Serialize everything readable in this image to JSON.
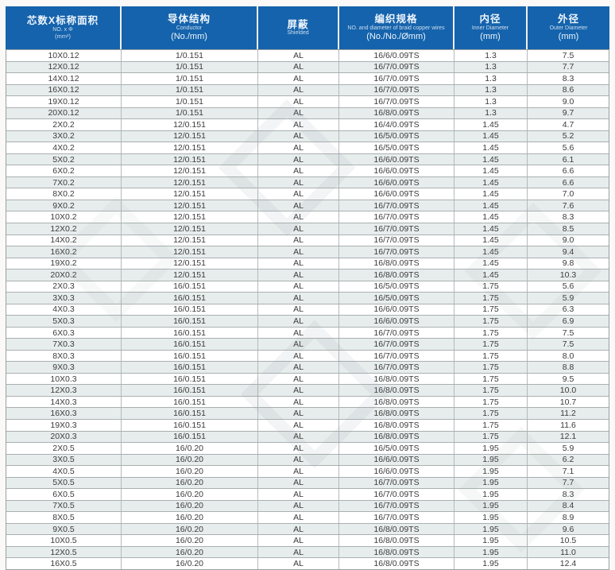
{
  "header": {
    "bg_color": "#1563ac",
    "columns": [
      {
        "zh": "芯数X标称面积",
        "en": "NO. x Φ",
        "unit": "(mm²)"
      },
      {
        "zh": "导体结构",
        "en": "Conductor",
        "unit": "(No./mm)"
      },
      {
        "zh": "屏蔽",
        "en": "Shielded",
        "unit": ""
      },
      {
        "zh": "编织规格",
        "en": "NO. and diameter of braid copper wires",
        "unit": "(No./No./Ømm)"
      },
      {
        "zh": "内径",
        "en": "Inner Diameter",
        "unit": "(mm)"
      },
      {
        "zh": "外径",
        "en": "Outer Diameter",
        "unit": "(mm)"
      }
    ]
  },
  "table": {
    "row_alt_color": "#e7edec",
    "border_color": "#aab0b1",
    "rows": [
      [
        "10X0.12",
        "1/0.151",
        "AL",
        "16/6/0.09TS",
        "1.3",
        "7.5"
      ],
      [
        "12X0.12",
        "1/0.151",
        "AL",
        "16/7/0.09TS",
        "1.3",
        "7.7"
      ],
      [
        "14X0.12",
        "1/0.151",
        "AL",
        "16/7/0.09TS",
        "1.3",
        "8.3"
      ],
      [
        "16X0.12",
        "1/0.151",
        "AL",
        "16/7/0.09TS",
        "1.3",
        "8.6"
      ],
      [
        "19X0.12",
        "1/0.151",
        "AL",
        "16/7/0.09TS",
        "1.3",
        "9.0"
      ],
      [
        "20X0.12",
        "1/0.151",
        "AL",
        "16/8/0.09TS",
        "1.3",
        "9.7"
      ],
      [
        "2X0.2",
        "12/0.151",
        "AL",
        "16/4/0.09TS",
        "1.45",
        "4.7"
      ],
      [
        "3X0.2",
        "12/0.151",
        "AL",
        "16/5/0.09TS",
        "1.45",
        "5.2"
      ],
      [
        "4X0.2",
        "12/0.151",
        "AL",
        "16/5/0.09TS",
        "1.45",
        "5.6"
      ],
      [
        "5X0.2",
        "12/0.151",
        "AL",
        "16/6/0.09TS",
        "1.45",
        "6.1"
      ],
      [
        "6X0.2",
        "12/0.151",
        "AL",
        "16/6/0.09TS",
        "1.45",
        "6.6"
      ],
      [
        "7X0.2",
        "12/0.151",
        "AL",
        "16/6/0.09TS",
        "1.45",
        "6.6"
      ],
      [
        "8X0.2",
        "12/0.151",
        "AL",
        "16/6/0.09TS",
        "1.45",
        "7.0"
      ],
      [
        "9X0.2",
        "12/0.151",
        "AL",
        "16/7/0.09TS",
        "1.45",
        "7.6"
      ],
      [
        "10X0.2",
        "12/0.151",
        "AL",
        "16/7/0.09TS",
        "1.45",
        "8.3"
      ],
      [
        "12X0.2",
        "12/0.151",
        "AL",
        "16/7/0.09TS",
        "1.45",
        "8.5"
      ],
      [
        "14X0.2",
        "12/0.151",
        "AL",
        "16/7/0.09TS",
        "1.45",
        "9.0"
      ],
      [
        "16X0.2",
        "12/0.151",
        "AL",
        "16/7/0.09TS",
        "1.45",
        "9.4"
      ],
      [
        "19X0.2",
        "12/0.151",
        "AL",
        "16/8/0.09TS",
        "1.45",
        "9.8"
      ],
      [
        "20X0.2",
        "12/0.151",
        "AL",
        "16/8/0.09TS",
        "1.45",
        "10.3"
      ],
      [
        "2X0.3",
        "16/0.151",
        "AL",
        "16/5/0.09TS",
        "1.75",
        "5.6"
      ],
      [
        "3X0.3",
        "16/0.151",
        "AL",
        "16/5/0.09TS",
        "1.75",
        "5.9"
      ],
      [
        "4X0.3",
        "16/0.151",
        "AL",
        "16/6/0.09TS",
        "1.75",
        "6.3"
      ],
      [
        "5X0.3",
        "16/0.151",
        "AL",
        "16/6/0.09TS",
        "1.75",
        "6.9"
      ],
      [
        "6X0.3",
        "16/0.151",
        "AL",
        "16/7/0.09TS",
        "1.75",
        "7.5"
      ],
      [
        "7X0.3",
        "16/0.151",
        "AL",
        "16/7/0.09TS",
        "1.75",
        "7.5"
      ],
      [
        "8X0.3",
        "16/0.151",
        "AL",
        "16/7/0.09TS",
        "1.75",
        "8.0"
      ],
      [
        "9X0.3",
        "16/0.151",
        "AL",
        "16/7/0.09TS",
        "1.75",
        "8.8"
      ],
      [
        "10X0.3",
        "16/0.151",
        "AL",
        "16/8/0.09TS",
        "1.75",
        "9.5"
      ],
      [
        "12X0.3",
        "16/0.151",
        "AL",
        "16/8/0.09TS",
        "1.75",
        "10.0"
      ],
      [
        "14X0.3",
        "16/0.151",
        "AL",
        "16/8/0.09TS",
        "1.75",
        "10.7"
      ],
      [
        "16X0.3",
        "16/0.151",
        "AL",
        "16/8/0.09TS",
        "1.75",
        "11.2"
      ],
      [
        "19X0.3",
        "16/0.151",
        "AL",
        "16/8/0.09TS",
        "1.75",
        "11.6"
      ],
      [
        "20X0.3",
        "16/0.151",
        "AL",
        "16/8/0.09TS",
        "1.75",
        "12.1"
      ],
      [
        "2X0.5",
        "16/0.20",
        "AL",
        "16/5/0.09TS",
        "1.95",
        "5.9"
      ],
      [
        "3X0.5",
        "16/0.20",
        "AL",
        "16/6/0.09TS",
        "1.95",
        "6.2"
      ],
      [
        "4X0.5",
        "16/0.20",
        "AL",
        "16/6/0.09TS",
        "1.95",
        "7.1"
      ],
      [
        "5X0.5",
        "16/0.20",
        "AL",
        "16/7/0.09TS",
        "1.95",
        "7.7"
      ],
      [
        "6X0.5",
        "16/0.20",
        "AL",
        "16/7/0.09TS",
        "1.95",
        "8.3"
      ],
      [
        "7X0.5",
        "16/0.20",
        "AL",
        "16/7/0.09TS",
        "1.95",
        "8.4"
      ],
      [
        "8X0.5",
        "16/0.20",
        "AL",
        "16/7/0.09TS",
        "1.95",
        "8.9"
      ],
      [
        "9X0.5",
        "16/0.20",
        "AL",
        "16/8/0.09TS",
        "1.95",
        "9.6"
      ],
      [
        "10X0.5",
        "16/0.20",
        "AL",
        "16/8/0.09TS",
        "1.95",
        "10.5"
      ],
      [
        "12X0.5",
        "16/0.20",
        "AL",
        "16/8/0.09TS",
        "1.95",
        "11.0"
      ],
      [
        "16X0.5",
        "16/0.20",
        "AL",
        "16/8/0.09TS",
        "1.95",
        "12.4"
      ]
    ]
  }
}
